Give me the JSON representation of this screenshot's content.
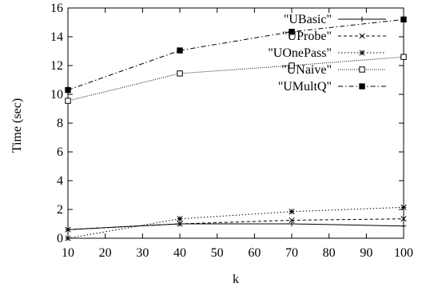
{
  "chart_data": {
    "type": "line",
    "xlabel": "k",
    "ylabel": "Time (sec)",
    "xlim": [
      10,
      100
    ],
    "ylim": [
      0,
      16
    ],
    "xticks": [
      10,
      20,
      30,
      40,
      50,
      60,
      70,
      80,
      90,
      100
    ],
    "yticks": [
      0,
      2,
      4,
      6,
      8,
      10,
      12,
      14,
      16
    ],
    "grid": false,
    "legend_position": "top-right",
    "x": [
      10,
      40,
      70,
      100
    ],
    "series": [
      {
        "name": "\"UBasic\"",
        "marker": "plus",
        "dash": "solid",
        "values": [
          0.6,
          1.0,
          1.0,
          0.85
        ]
      },
      {
        "name": "\"UProbe\"",
        "marker": "cross",
        "dash": "dashed",
        "values": [
          0.6,
          1.0,
          1.25,
          1.35
        ]
      },
      {
        "name": "\"UOnePass\"",
        "marker": "star",
        "dash": "dotted",
        "values": [
          0.0,
          1.35,
          1.85,
          2.15
        ]
      },
      {
        "name": "\"UNaive\"",
        "marker": "square-open",
        "dash": "fine-dotted",
        "values": [
          9.55,
          11.45,
          12.0,
          12.6
        ]
      },
      {
        "name": "\"UMultQ\"",
        "marker": "square-filled",
        "dash": "dash-dot",
        "values": [
          10.3,
          13.05,
          14.35,
          15.2
        ]
      }
    ]
  }
}
